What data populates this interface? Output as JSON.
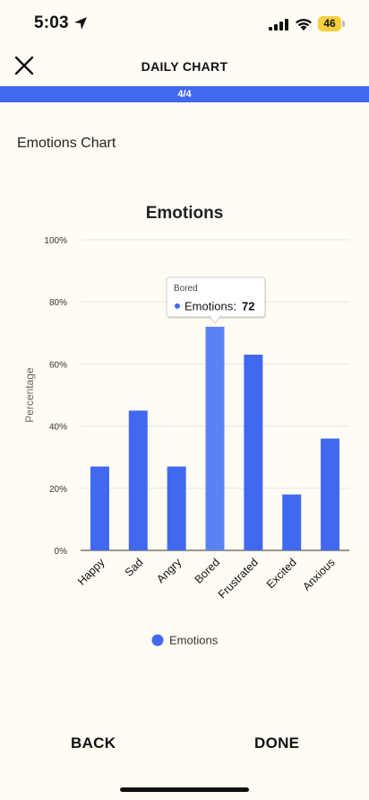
{
  "status_bar": {
    "time": "5:03",
    "battery": "46",
    "icons": [
      "location-arrow-icon",
      "signal-icon",
      "wifi-icon",
      "battery-icon"
    ]
  },
  "header": {
    "title": "DAILY CHART",
    "close_icon": "close-icon"
  },
  "progress": {
    "label": "4/4",
    "fraction": 1.0,
    "color": "#4169F0"
  },
  "section": {
    "title": "Emotions Chart"
  },
  "chart_data": {
    "type": "bar",
    "title": "Emotions",
    "xlabel": "",
    "ylabel": "Percentage",
    "categories": [
      "Happy",
      "Sad",
      "Angry",
      "Bored",
      "Frustrated",
      "Excited",
      "Anxious"
    ],
    "series": [
      {
        "name": "Emotions",
        "values": [
          27,
          45,
          27,
          72,
          63,
          18,
          36
        ],
        "color": "#4169F0"
      }
    ],
    "ylim": [
      0,
      100
    ],
    "yticks": [
      "0%",
      "20%",
      "40%",
      "60%",
      "80%",
      "100%"
    ],
    "grid": true,
    "legend": "bottom",
    "highlighted_index": 3,
    "highlight_color": "#5B82F5",
    "tooltip": {
      "category": "Bored",
      "series_name": "Emotions",
      "value": "72"
    }
  },
  "footer": {
    "back_label": "BACK",
    "done_label": "DONE"
  }
}
